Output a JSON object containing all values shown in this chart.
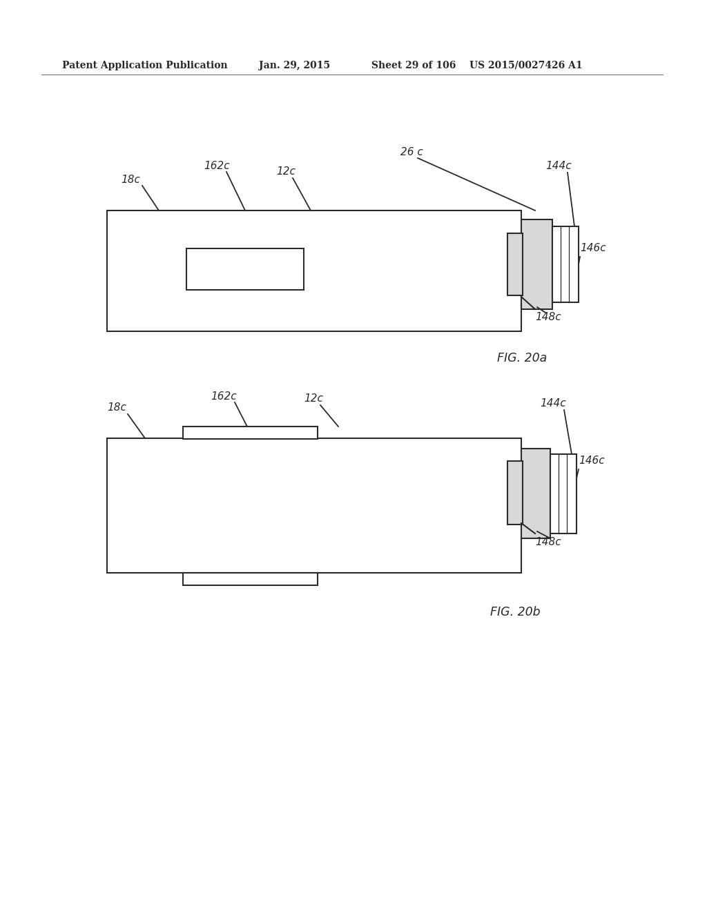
{
  "bg_color": "#ffffff",
  "header_text": "Patent Application Publication",
  "header_date": "Jan. 29, 2015",
  "header_sheet": "Sheet 29 of 106",
  "header_patent": "US 2015/0027426 A1",
  "fig_a_caption": "FIG. 20a",
  "fig_b_caption": "FIG. 20b",
  "line_color": "#2a2a2a",
  "line_width": 1.5
}
